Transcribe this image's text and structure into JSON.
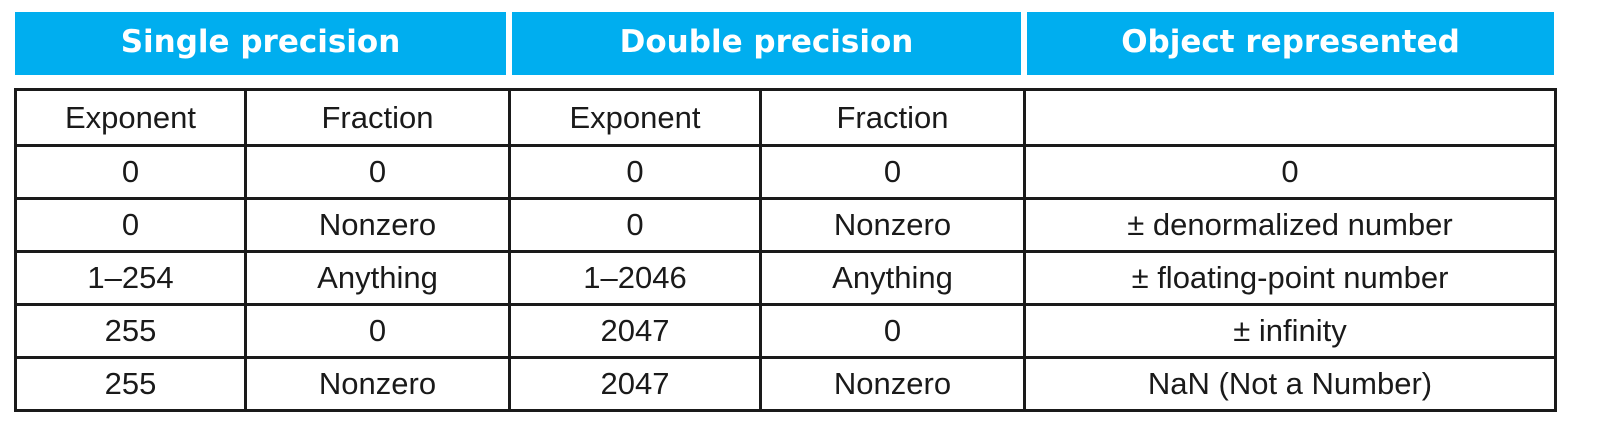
{
  "headers": {
    "single_precision": "Single precision",
    "double_precision": "Double precision",
    "object_represented": "Object represented"
  },
  "subheaders": [
    "Exponent",
    "Fraction",
    "Exponent",
    "Fraction",
    ""
  ],
  "rows": [
    [
      "0",
      "0",
      "0",
      "0",
      "0"
    ],
    [
      "0",
      "Nonzero",
      "0",
      "Nonzero",
      "± denormalized number"
    ],
    [
      "1–254",
      "Anything",
      "1–2046",
      "Anything",
      "± floating-point number"
    ],
    [
      "255",
      "0",
      "2047",
      "0",
      "± infinity"
    ],
    [
      "255",
      "Nonzero",
      "2047",
      "Nonzero",
      "NaN (Not a Number)"
    ]
  ],
  "colors": {
    "header_bg": "#00aeef",
    "header_text": "#ffffff",
    "border": "#1a1a1a"
  }
}
